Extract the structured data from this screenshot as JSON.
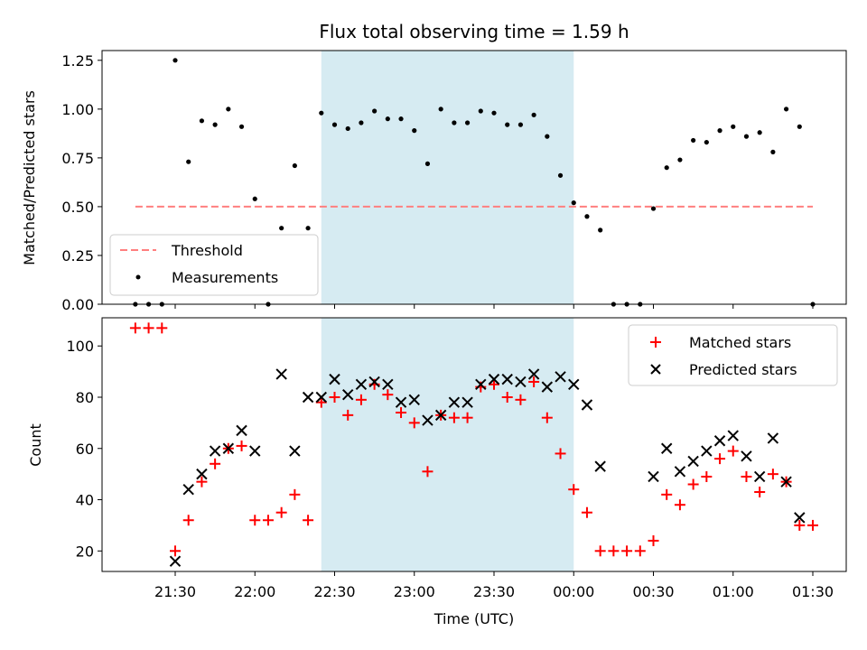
{
  "chart_data": [
    {
      "type": "scatter",
      "title": "Flux total observing time = 1.59 h",
      "xlabel": "",
      "ylabel": "Matched/Predicted stars",
      "ylim": [
        0,
        1.3
      ],
      "yticks": [
        "0.00",
        "0.25",
        "0.50",
        "0.75",
        "1.00",
        "1.25"
      ],
      "shaded_interval": [
        "22:25",
        "00:00"
      ],
      "legend_position": "lower-left",
      "threshold": {
        "name": "Threshold",
        "y": 0.5,
        "x_start": "21:15",
        "x_end": "01:30",
        "color": "#ff7f7f"
      },
      "series": [
        {
          "name": "Measurements",
          "color": "#000000",
          "x": [
            "21:15",
            "21:20",
            "21:25",
            "21:30",
            "21:35",
            "21:40",
            "21:45",
            "21:50",
            "21:55",
            "22:00",
            "22:05",
            "22:10",
            "22:15",
            "22:20",
            "22:25",
            "22:30",
            "22:35",
            "22:40",
            "22:45",
            "22:50",
            "22:55",
            "23:00",
            "23:05",
            "23:10",
            "23:15",
            "23:20",
            "23:25",
            "23:30",
            "23:35",
            "23:40",
            "23:45",
            "23:50",
            "23:55",
            "00:00",
            "00:05",
            "00:10",
            "00:15",
            "00:20",
            "00:25",
            "00:30",
            "00:35",
            "00:40",
            "00:45",
            "00:50",
            "00:55",
            "01:00",
            "01:05",
            "01:10",
            "01:15",
            "01:20",
            "01:25",
            "01:30"
          ],
          "y": [
            0.0,
            0.0,
            0.0,
            1.25,
            0.73,
            0.94,
            0.92,
            1.0,
            0.91,
            0.54,
            0.0,
            0.39,
            0.71,
            0.39,
            0.98,
            0.92,
            0.9,
            0.93,
            0.99,
            0.95,
            0.95,
            0.89,
            0.72,
            1.0,
            0.93,
            0.93,
            0.99,
            0.98,
            0.92,
            0.92,
            0.97,
            0.86,
            0.66,
            0.52,
            0.45,
            0.38,
            0.0,
            0.0,
            0.0,
            0.49,
            0.7,
            0.74,
            0.84,
            0.83,
            0.89,
            0.91,
            0.86,
            0.88,
            0.78,
            1.0,
            0.91,
            0.0
          ]
        }
      ]
    },
    {
      "type": "scatter",
      "title": "",
      "xlabel": "Time (UTC)",
      "ylabel": "Count",
      "ylim": [
        12,
        111
      ],
      "yticks": [
        "20",
        "40",
        "60",
        "80",
        "100"
      ],
      "xticks": [
        "21:30",
        "22:00",
        "22:30",
        "23:00",
        "23:30",
        "00:00",
        "00:30",
        "01:00",
        "01:30"
      ],
      "shaded_interval": [
        "22:25",
        "00:00"
      ],
      "legend_position": "upper-right",
      "series": [
        {
          "name": "Matched stars",
          "color": "#ff0000",
          "marker": "+",
          "x": [
            "21:15",
            "21:20",
            "21:25",
            "21:30",
            "21:35",
            "21:40",
            "21:45",
            "21:50",
            "21:55",
            "22:00",
            "22:05",
            "22:10",
            "22:15",
            "22:20",
            "22:25",
            "22:30",
            "22:35",
            "22:40",
            "22:45",
            "22:50",
            "22:55",
            "23:00",
            "23:05",
            "23:10",
            "23:15",
            "23:20",
            "23:25",
            "23:30",
            "23:35",
            "23:40",
            "23:45",
            "23:50",
            "23:55",
            "00:00",
            "00:05",
            "00:10",
            "00:15",
            "00:20",
            "00:25",
            "00:30",
            "00:35",
            "00:40",
            "00:45",
            "00:50",
            "00:55",
            "01:00",
            "01:05",
            "01:10",
            "01:15",
            "01:20",
            "01:25",
            "01:30"
          ],
          "y": [
            107,
            107,
            107,
            20,
            32,
            47,
            54,
            60,
            61,
            32,
            32,
            35,
            42,
            32,
            78,
            80,
            73,
            79,
            85,
            81,
            74,
            70,
            51,
            73,
            72,
            72,
            84,
            85,
            80,
            79,
            86,
            72,
            58,
            44,
            35,
            20,
            20,
            20,
            20,
            24,
            42,
            38,
            46,
            49,
            56,
            59,
            49,
            43,
            50,
            47,
            30,
            30
          ]
        },
        {
          "name": "Predicted stars",
          "color": "#000000",
          "marker": "x",
          "x": [
            "21:30",
            "21:35",
            "21:40",
            "21:45",
            "21:50",
            "21:55",
            "22:00",
            "22:10",
            "22:15",
            "22:20",
            "22:25",
            "22:30",
            "22:35",
            "22:40",
            "22:45",
            "22:50",
            "22:55",
            "23:00",
            "23:05",
            "23:10",
            "23:15",
            "23:20",
            "23:25",
            "23:30",
            "23:35",
            "23:40",
            "23:45",
            "23:50",
            "23:55",
            "00:00",
            "00:05",
            "00:10",
            "00:30",
            "00:35",
            "00:40",
            "00:45",
            "00:50",
            "00:55",
            "01:00",
            "01:05",
            "01:10",
            "01:15",
            "01:20",
            "01:25"
          ],
          "y": [
            16,
            44,
            50,
            59,
            60,
            67,
            59,
            89,
            59,
            80,
            80,
            87,
            81,
            85,
            86,
            85,
            78,
            79,
            71,
            73,
            78,
            78,
            85,
            87,
            87,
            86,
            89,
            84,
            88,
            85,
            77,
            53,
            49,
            60,
            51,
            55,
            59,
            63,
            65,
            57,
            49,
            64,
            47,
            33
          ]
        }
      ]
    }
  ]
}
